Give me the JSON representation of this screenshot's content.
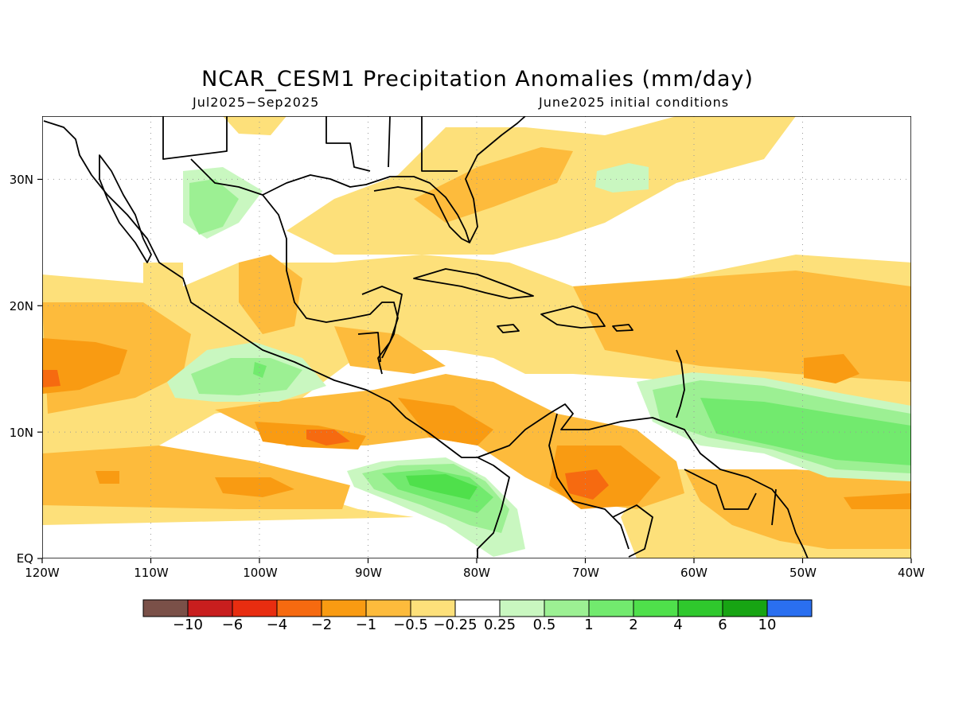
{
  "title": "NCAR_CESM1 Precipitation Anomalies (mm/day)",
  "subtitle_left": "Jul2025−Sep2025",
  "subtitle_right": "June2025 initial conditions",
  "map": {
    "lon_labels": [
      "120W",
      "110W",
      "100W",
      "90W",
      "80W",
      "70W",
      "60W",
      "50W",
      "40W"
    ],
    "lat_labels": [
      "EQ",
      "10N",
      "20N",
      "30N"
    ],
    "gridlines": "dotted"
  },
  "colorbar": {
    "colors": [
      "#7a5048",
      "#c81e1e",
      "#e82d10",
      "#f66a10",
      "#f99b12",
      "#fdbb3c",
      "#fde07a",
      "#ffffff",
      "#c9f7c0",
      "#9cf093",
      "#72ea6e",
      "#4fe04b",
      "#2fc82d",
      "#17a413",
      "#2a6ff0"
    ],
    "labels": [
      "−10",
      "−6",
      "−4",
      "−2",
      "−1",
      "−0.5",
      "−0.25",
      "0.25",
      "0.5",
      "1",
      "2",
      "4",
      "6",
      "10"
    ]
  }
}
